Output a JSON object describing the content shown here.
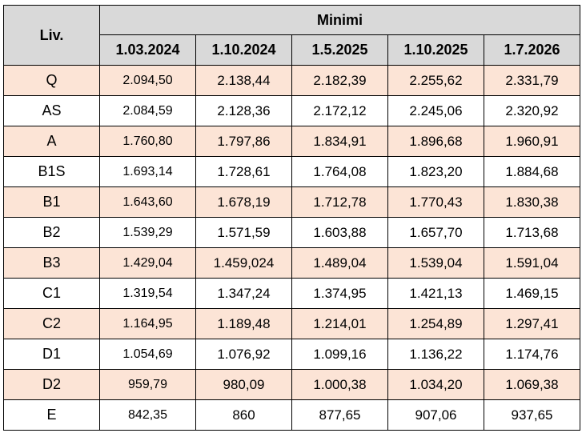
{
  "table": {
    "level_header": "Liv.",
    "group_header": "Minimi",
    "date_headers": [
      "1.03.2024",
      "1.10.2024",
      "1.5.2025",
      "1.10.2025",
      "1.7.2026"
    ],
    "shade_color": "#fce4d6",
    "header_color": "#d9d9d9",
    "rows": [
      {
        "level": "Q",
        "values": [
          "2.094,50",
          "2.138,44",
          "2.182,39",
          "2.255,62",
          "2.331,79"
        ],
        "shaded": true
      },
      {
        "level": "AS",
        "values": [
          "2.084,59",
          "2.128,36",
          "2.172,12",
          "2.245,06",
          "2.320,92"
        ],
        "shaded": false
      },
      {
        "level": "A",
        "values": [
          "1.760,80",
          "1.797,86",
          "1.834,91",
          "1.896,68",
          "1.960,91"
        ],
        "shaded": true
      },
      {
        "level": "B1S",
        "values": [
          "1.693,14",
          "1.728,61",
          "1.764,08",
          "1.823,20",
          "1.884,68"
        ],
        "shaded": false
      },
      {
        "level": "B1",
        "values": [
          "1.643,60",
          "1.678,19",
          "1.712,78",
          "1.770,43",
          "1.830,38"
        ],
        "shaded": true
      },
      {
        "level": "B2",
        "values": [
          "1.539,29",
          "1.571,59",
          "1.603,88",
          "1.657,70",
          "1.713,68"
        ],
        "shaded": false
      },
      {
        "level": "B3",
        "values": [
          "1.429,04",
          "1.459,024",
          "1.489,04",
          "1.539,04",
          "1.591,04"
        ],
        "shaded": true
      },
      {
        "level": "C1",
        "values": [
          "1.319,54",
          "1.347,24",
          "1.374,95",
          "1.421,13",
          "1.469,15"
        ],
        "shaded": false
      },
      {
        "level": "C2",
        "values": [
          "1.164,95",
          "1.189,48",
          "1.214,01",
          "1.254,89",
          "1.297,41"
        ],
        "shaded": true
      },
      {
        "level": "D1",
        "values": [
          "1.054,69",
          "1.076,92",
          "1.099,16",
          "1.136,22",
          "1.174,76"
        ],
        "shaded": false
      },
      {
        "level": "D2",
        "values": [
          "959,79",
          "980,09",
          "1.000,38",
          "1.034,20",
          "1.069,38"
        ],
        "shaded": true
      },
      {
        "level": "E",
        "values": [
          "842,35",
          "860",
          "877,65",
          "907,06",
          "937,65"
        ],
        "shaded": false
      }
    ]
  }
}
